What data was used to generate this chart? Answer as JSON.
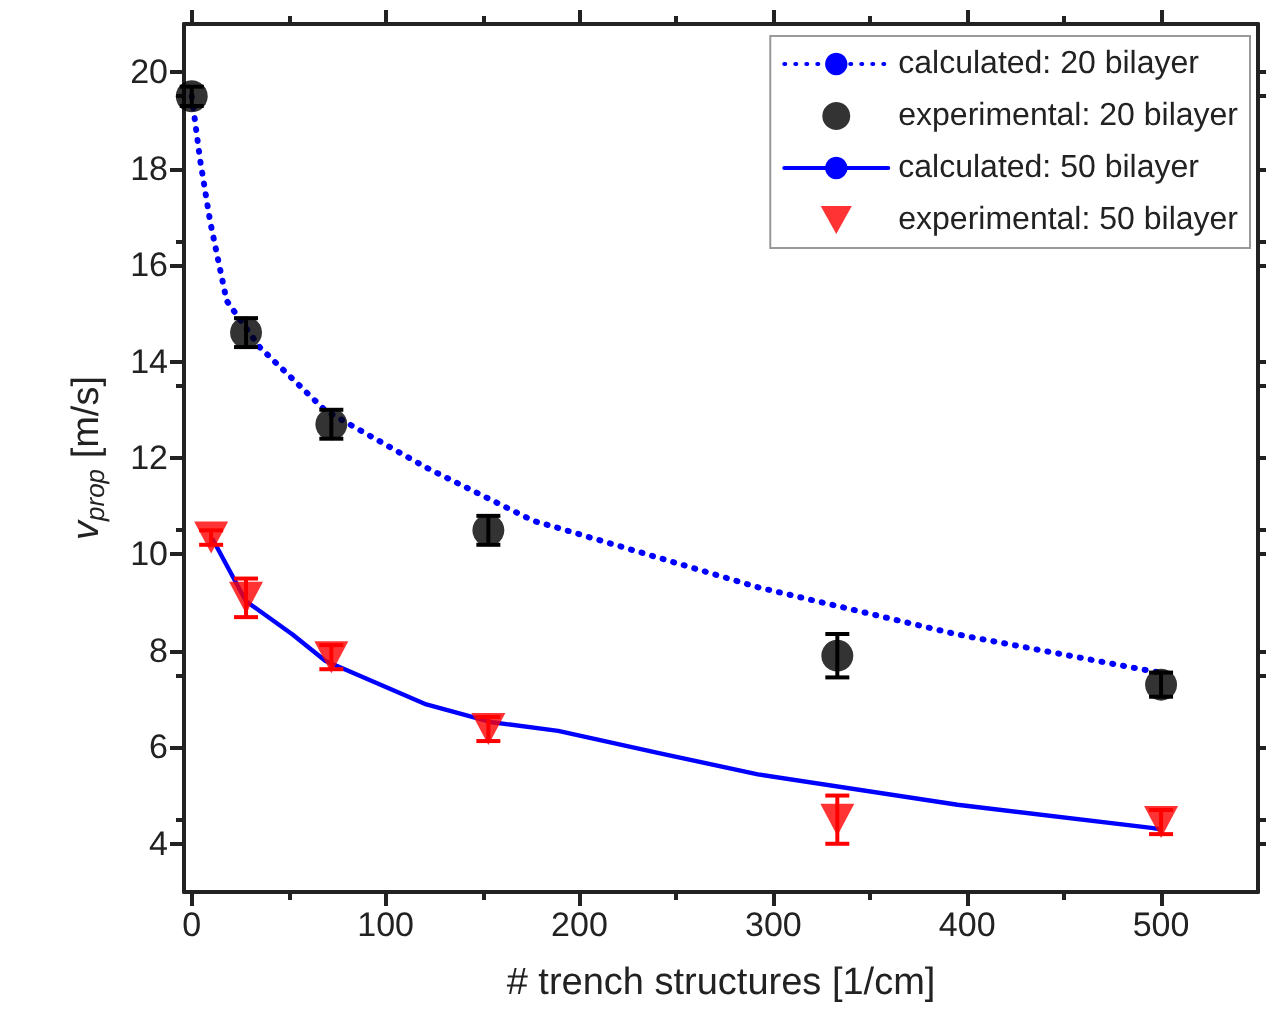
{
  "chart_data": {
    "type": "scatter",
    "xlabel": "# trench structures [1/cm]",
    "ylabel": "v$_{prop}$ [m/s]",
    "xlim": [
      -4,
      550
    ],
    "ylim": [
      3,
      21
    ],
    "xticks": [
      0,
      100,
      200,
      300,
      400,
      500
    ],
    "yticks": [
      4,
      6,
      8,
      10,
      12,
      14,
      16,
      18,
      20
    ],
    "grid": false,
    "legend": "top right",
    "series": [
      {
        "name": "calculated: 20 bilayer",
        "type": "line",
        "color": "#0000ff",
        "line_style": "dotted",
        "marker": "none",
        "x": [
          0,
          4.4,
          9.5,
          18,
          35,
          69,
          121,
          176,
          189,
          292,
          395,
          495,
          500
        ],
        "values": [
          19.5,
          18.16,
          16.9,
          15.26,
          14.3,
          12.98,
          11.8,
          10.7,
          10.55,
          9.32,
          8.34,
          7.58,
          7.55
        ]
      },
      {
        "name": "experimental: 20 bilayer",
        "color": "#000000",
        "marker": "circle",
        "x": [
          0,
          28,
          72,
          153,
          333,
          500
        ],
        "values": [
          19.5,
          14.6,
          12.7,
          10.5,
          7.9,
          7.3
        ],
        "errors": [
          0.2,
          0.3,
          0.3,
          0.3,
          0.45,
          0.25
        ]
      },
      {
        "name": "calculated: 50 bilayer",
        "type": "line",
        "color": "#0000ff",
        "line_style": "solid",
        "marker": "none",
        "x": [
          11,
          28,
          52,
          69,
          121,
          155,
          189,
          241,
          292,
          395,
          495,
          500
        ],
        "values": [
          10.3,
          9.03,
          8.34,
          7.79,
          6.89,
          6.52,
          6.34,
          5.88,
          5.44,
          4.81,
          4.33,
          4.3
        ]
      },
      {
        "name": "experimental: 50 bilayer",
        "color": "#ff0000",
        "marker": "triangle",
        "x": [
          10,
          28,
          72,
          153,
          333,
          500
        ],
        "values": [
          10.35,
          9.1,
          7.87,
          6.38,
          4.5,
          4.45
        ],
        "errors": [
          0.15,
          0.4,
          0.25,
          0.25,
          0.5,
          0.25
        ]
      }
    ]
  }
}
